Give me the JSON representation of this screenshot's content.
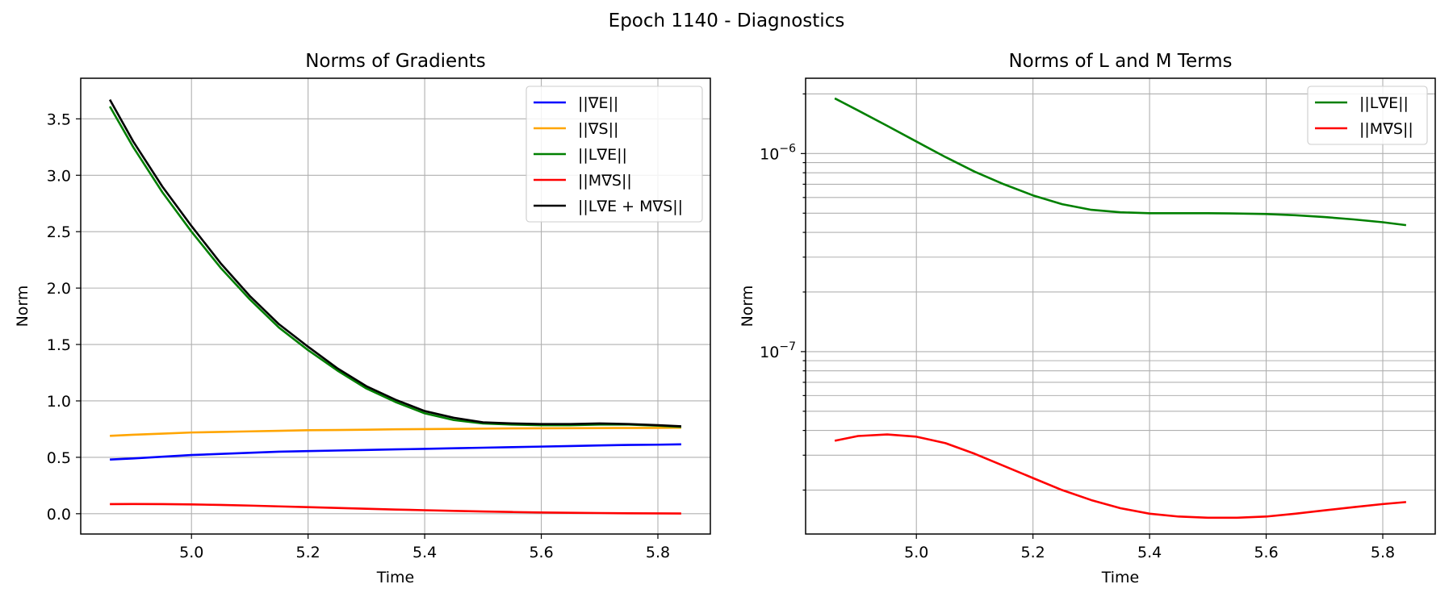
{
  "figure": {
    "suptitle": "Epoch 1140 - Diagnostics"
  },
  "chart_data": [
    {
      "type": "line",
      "title": "Norms of Gradients",
      "xlabel": "Time",
      "ylabel": "Norm",
      "yscale": "linear",
      "xlim": [
        4.81,
        5.89
      ],
      "ylim": [
        -0.18,
        3.86
      ],
      "xticks": [
        5.0,
        5.2,
        5.4,
        5.6,
        5.8
      ],
      "xtick_labels": [
        "5.0",
        "5.2",
        "5.4",
        "5.6",
        "5.8"
      ],
      "yticks": [
        0.0,
        0.5,
        1.0,
        1.5,
        2.0,
        2.5,
        3.0,
        3.5
      ],
      "ytick_labels": [
        "0.0",
        "0.5",
        "1.0",
        "1.5",
        "2.0",
        "2.5",
        "3.0",
        "3.5"
      ],
      "grid": true,
      "legend_position": "top-right",
      "x": [
        4.86,
        4.9,
        4.95,
        5.0,
        5.05,
        5.1,
        5.15,
        5.2,
        5.25,
        5.3,
        5.35,
        5.4,
        5.45,
        5.5,
        5.55,
        5.6,
        5.65,
        5.7,
        5.75,
        5.8,
        5.84
      ],
      "series": [
        {
          "name": "||∇E||",
          "color": "#0000ff",
          "values": [
            0.48,
            0.49,
            0.505,
            0.52,
            0.53,
            0.54,
            0.55,
            0.555,
            0.56,
            0.565,
            0.57,
            0.575,
            0.58,
            0.585,
            0.59,
            0.595,
            0.6,
            0.605,
            0.61,
            0.612,
            0.615
          ]
        },
        {
          "name": "||∇S||",
          "color": "#ffa500",
          "values": [
            0.69,
            0.7,
            0.71,
            0.72,
            0.725,
            0.73,
            0.735,
            0.74,
            0.742,
            0.745,
            0.748,
            0.75,
            0.752,
            0.754,
            0.756,
            0.757,
            0.758,
            0.759,
            0.76,
            0.761,
            0.762
          ]
        },
        {
          "name": "||L∇E||",
          "color": "#008000",
          "values": [
            3.61,
            3.25,
            2.85,
            2.5,
            2.18,
            1.9,
            1.65,
            1.45,
            1.27,
            1.11,
            0.99,
            0.89,
            0.83,
            0.8,
            0.79,
            0.785,
            0.785,
            0.79,
            0.79,
            0.78,
            0.77
          ]
        },
        {
          "name": "||M∇S||",
          "color": "#ff0000",
          "values": [
            0.085,
            0.086,
            0.085,
            0.082,
            0.078,
            0.072,
            0.065,
            0.058,
            0.051,
            0.044,
            0.037,
            0.031,
            0.025,
            0.02,
            0.015,
            0.011,
            0.008,
            0.006,
            0.004,
            0.003,
            0.002
          ]
        },
        {
          "name": "||L∇E + M∇S||",
          "color": "#000000",
          "values": [
            3.67,
            3.3,
            2.9,
            2.55,
            2.22,
            1.93,
            1.68,
            1.48,
            1.29,
            1.13,
            1.01,
            0.91,
            0.85,
            0.81,
            0.8,
            0.795,
            0.795,
            0.8,
            0.795,
            0.785,
            0.775
          ]
        }
      ]
    },
    {
      "type": "line",
      "title": "Norms of L and M Terms",
      "xlabel": "Time",
      "ylabel": "Norm",
      "yscale": "log",
      "xlim": [
        4.81,
        5.89
      ],
      "ylim": [
        1.2e-08,
        2.4e-06
      ],
      "xticks": [
        5.0,
        5.2,
        5.4,
        5.6,
        5.8
      ],
      "xtick_labels": [
        "5.0",
        "5.2",
        "5.4",
        "5.6",
        "5.8"
      ],
      "yticks_major": [
        1e-07,
        1e-06
      ],
      "ytick_major_labels": [
        {
          "base": "10",
          "exp": "−7"
        },
        {
          "base": "10",
          "exp": "−6"
        }
      ],
      "yticks_minor": [
        2e-08,
        3e-08,
        4e-08,
        5e-08,
        6e-08,
        7e-08,
        8e-08,
        9e-08,
        2e-07,
        3e-07,
        4e-07,
        5e-07,
        6e-07,
        7e-07,
        8e-07,
        9e-07,
        2e-06
      ],
      "grid": true,
      "legend_position": "top-right",
      "x": [
        4.86,
        4.9,
        4.95,
        5.0,
        5.05,
        5.1,
        5.15,
        5.2,
        5.25,
        5.3,
        5.35,
        5.4,
        5.45,
        5.5,
        5.55,
        5.6,
        5.65,
        5.7,
        5.75,
        5.8,
        5.84
      ],
      "series": [
        {
          "name": "||L∇E||",
          "color": "#008000",
          "values": [
            1.9e-06,
            1.65e-06,
            1.38e-06,
            1.15e-06,
            9.6e-07,
            8.1e-07,
            7e-07,
            6.15e-07,
            5.55e-07,
            5.2e-07,
            5.05e-07,
            5e-07,
            5e-07,
            5e-07,
            4.98e-07,
            4.95e-07,
            4.88e-07,
            4.78e-07,
            4.65e-07,
            4.5e-07,
            4.35e-07
          ]
        },
        {
          "name": "||M∇S||",
          "color": "#ff0000",
          "values": [
            3.55e-08,
            3.75e-08,
            3.82e-08,
            3.72e-08,
            3.45e-08,
            3.05e-08,
            2.65e-08,
            2.3e-08,
            2e-08,
            1.78e-08,
            1.62e-08,
            1.52e-08,
            1.47e-08,
            1.45e-08,
            1.45e-08,
            1.47e-08,
            1.52e-08,
            1.58e-08,
            1.64e-08,
            1.7e-08,
            1.74e-08
          ]
        }
      ]
    }
  ]
}
